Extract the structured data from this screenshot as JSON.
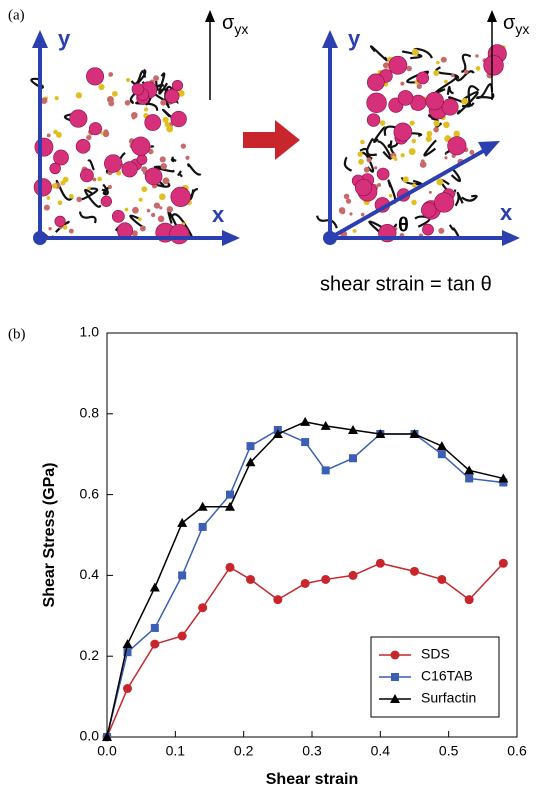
{
  "panel_a": {
    "label": "(a)",
    "left": {
      "y_axis": "y",
      "x_axis": "x",
      "stress": "σ",
      "stress_sub": "yx"
    },
    "right": {
      "y_axis": "y",
      "x_axis": "x",
      "stress": "σ",
      "stress_sub": "yx",
      "angle": "θ"
    },
    "caption": "shear strain = tan θ"
  },
  "chart_data": {
    "type": "line",
    "panel_label": "(b)",
    "x_label": "Shear strain",
    "y_label": "Shear Stress (GPa)",
    "x": [
      0,
      0.03,
      0.07,
      0.11,
      0.14,
      0.18,
      0.21,
      0.25,
      0.29,
      0.32,
      0.36,
      0.4,
      0.45,
      0.49,
      0.53,
      0.58
    ],
    "series": [
      {
        "name": "SDS",
        "color": "#c8262c",
        "marker": "circle",
        "values": [
          0,
          0.12,
          0.23,
          0.25,
          0.32,
          0.42,
          0.39,
          0.34,
          0.38,
          0.39,
          0.4,
          0.43,
          0.41,
          0.39,
          0.34,
          0.43
        ]
      },
      {
        "name": "C16TAB",
        "color": "#3a5fb4",
        "marker": "square",
        "values": [
          0,
          0.21,
          0.27,
          0.4,
          0.52,
          0.6,
          0.72,
          0.76,
          0.73,
          0.66,
          0.69,
          0.75,
          0.75,
          0.7,
          0.64,
          0.63
        ]
      },
      {
        "name": "Surfactin",
        "color": "#000000",
        "marker": "triangle",
        "values": [
          0,
          0.23,
          0.37,
          0.53,
          0.57,
          0.57,
          0.68,
          0.75,
          0.78,
          0.77,
          0.76,
          0.75,
          0.75,
          0.72,
          0.66,
          0.64
        ]
      }
    ],
    "xlim": [
      0,
      0.6
    ],
    "xticks": [
      {
        "value": 0,
        "label": "0.0"
      },
      0.1,
      0.2,
      0.3,
      0.4,
      0.5,
      0.6
    ],
    "ylim": [
      0,
      1.0
    ],
    "yticks": [
      {
        "value": 0,
        "label": "0.0"
      },
      0.2,
      0.4,
      0.6,
      0.8,
      {
        "value": 1.0,
        "label": "1.0"
      }
    ],
    "grid": false,
    "legend": "lower right"
  }
}
